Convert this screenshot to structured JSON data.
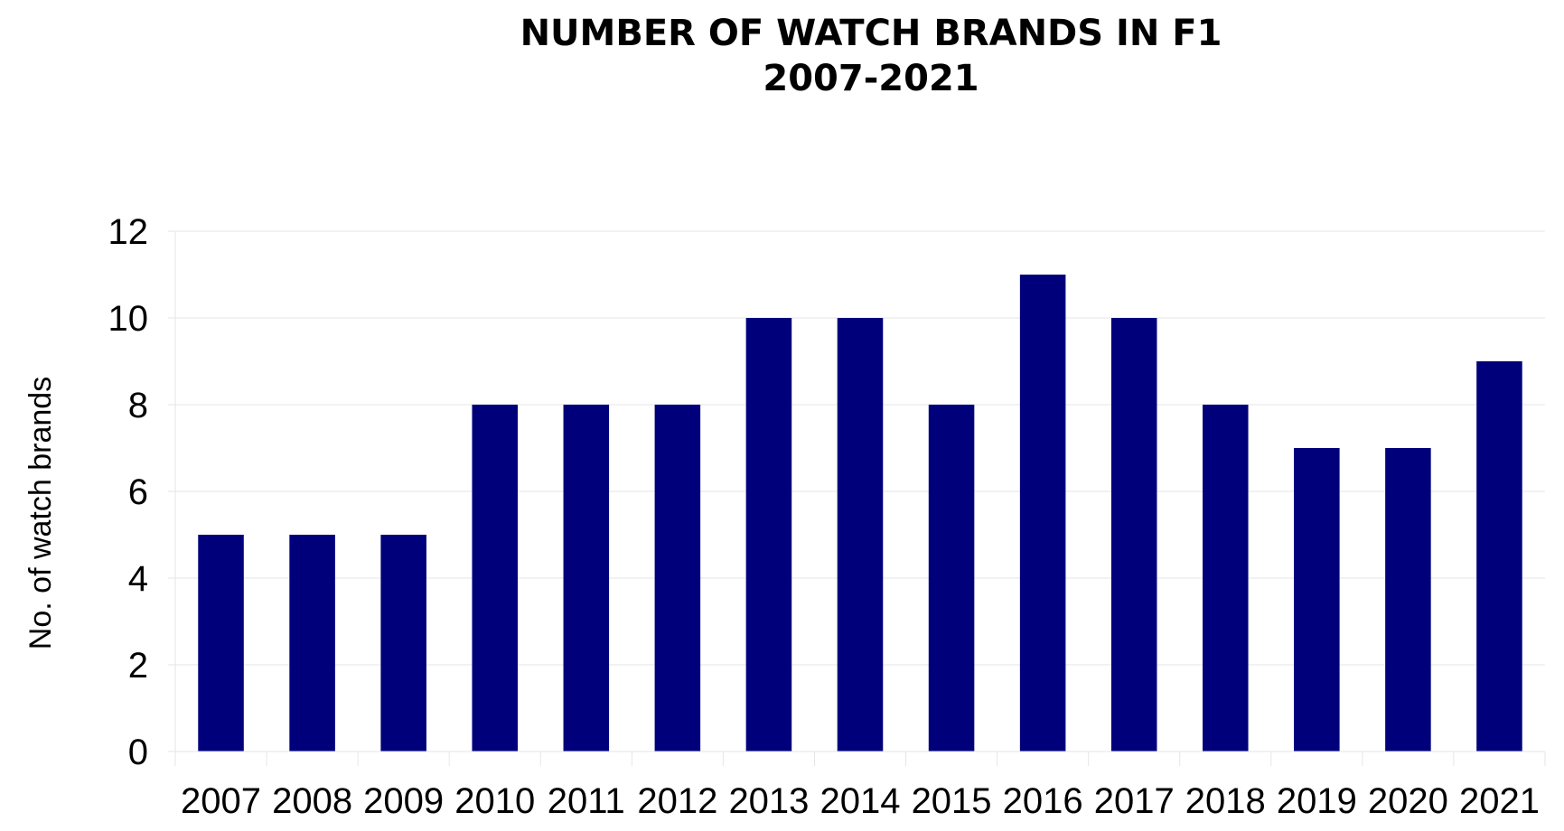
{
  "chart_data": {
    "type": "bar",
    "title_lines": [
      "NUMBER OF WATCH BRANDS IN F1",
      "2007-2021"
    ],
    "xlabel": "",
    "ylabel": "No. of watch brands",
    "categories": [
      "2007",
      "2008",
      "2009",
      "2010",
      "2011",
      "2012",
      "2013",
      "2014",
      "2015",
      "2016",
      "2017",
      "2018",
      "2019",
      "2020",
      "2021"
    ],
    "series": [
      {
        "values": [
          5,
          5,
          5,
          8,
          8,
          8,
          10,
          10,
          8,
          11,
          10,
          8,
          7,
          7,
          9
        ],
        "color": "#00007b"
      }
    ],
    "ylim": [
      0,
      12
    ],
    "yticks": [
      0,
      2,
      4,
      6,
      8,
      10,
      12
    ],
    "grid": true,
    "legend": "none"
  }
}
